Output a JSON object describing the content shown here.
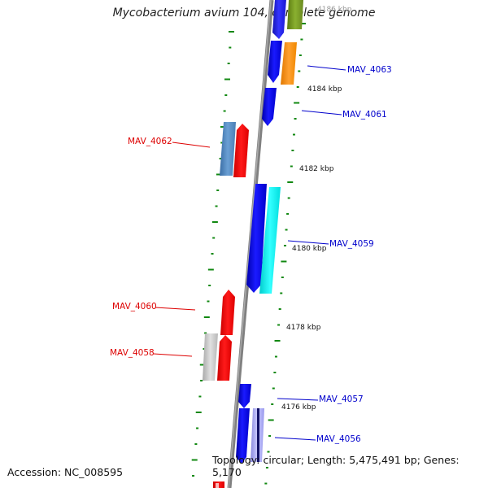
{
  "title": "Mycobacterium avium 104, complete genome",
  "footer": {
    "accession": "Accession: NC_008595",
    "topology": "Topology: circular; Length: 5,475,491 bp; Genes: 5,170"
  },
  "scale_labels": [
    "4186 kbp",
    "4184 kbp",
    "4182 kbp",
    "4180 kbp",
    "4178 kbp",
    "4176 kbp"
  ],
  "gene_labels": [
    {
      "text": "MAV_4063",
      "strand": "forward"
    },
    {
      "text": "MAV_4061",
      "strand": "forward"
    },
    {
      "text": "MAV_4062",
      "strand": "reverse"
    },
    {
      "text": "MAV_4059",
      "strand": "forward"
    },
    {
      "text": "MAV_4060",
      "strand": "reverse"
    },
    {
      "text": "MAV_4058",
      "strand": "reverse"
    },
    {
      "text": "MAV_4057",
      "strand": "forward"
    },
    {
      "text": "MAV_4056",
      "strand": "forward"
    }
  ],
  "colors": {
    "backbone": "#808080",
    "forward_label": "#0000cc",
    "reverse_label": "#dd0000",
    "tick": "#118811"
  }
}
